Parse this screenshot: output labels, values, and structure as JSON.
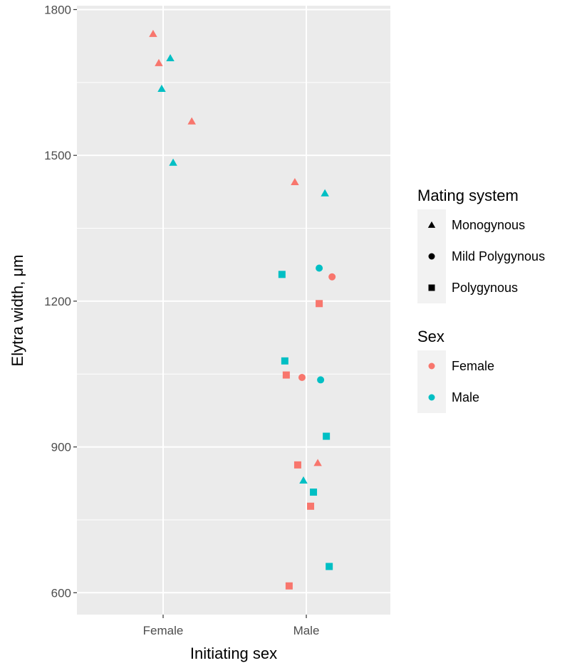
{
  "chart_data": {
    "type": "scatter",
    "title": "",
    "xlabel": "Initiating sex",
    "ylabel": "Elytra width, μm",
    "categories": [
      "Female",
      "Male"
    ],
    "ylim": [
      555,
      1808
    ],
    "yticks": [
      600,
      900,
      1200,
      1500,
      1800
    ],
    "grid": true,
    "legend_position": "right",
    "colors": {
      "Female": "#F8766D",
      "Male": "#00BFC4"
    },
    "legends": [
      {
        "title": "Mating system",
        "items": [
          {
            "label": "Monogynous",
            "shape": "triangle"
          },
          {
            "label": "Mild Polygynous",
            "shape": "circle"
          },
          {
            "label": "Polygynous",
            "shape": "square"
          }
        ]
      },
      {
        "title": "Sex",
        "items": [
          {
            "label": "Female",
            "color": "#F8766D"
          },
          {
            "label": "Male",
            "color": "#00BFC4"
          }
        ]
      }
    ],
    "points": [
      {
        "initiating_sex": "Female",
        "jitter": -0.07,
        "y": 1750,
        "sex": "Female",
        "mating_system": "Monogynous"
      },
      {
        "initiating_sex": "Female",
        "jitter": -0.03,
        "y": 1690,
        "sex": "Female",
        "mating_system": "Monogynous"
      },
      {
        "initiating_sex": "Female",
        "jitter": 0.05,
        "y": 1700,
        "sex": "Male",
        "mating_system": "Monogynous"
      },
      {
        "initiating_sex": "Female",
        "jitter": -0.01,
        "y": 1637,
        "sex": "Male",
        "mating_system": "Monogynous"
      },
      {
        "initiating_sex": "Female",
        "jitter": 0.2,
        "y": 1570,
        "sex": "Female",
        "mating_system": "Monogynous"
      },
      {
        "initiating_sex": "Female",
        "jitter": 0.07,
        "y": 1485,
        "sex": "Male",
        "mating_system": "Monogynous"
      },
      {
        "initiating_sex": "Male",
        "jitter": -0.08,
        "y": 1445,
        "sex": "Female",
        "mating_system": "Monogynous"
      },
      {
        "initiating_sex": "Male",
        "jitter": 0.13,
        "y": 1422,
        "sex": "Male",
        "mating_system": "Monogynous"
      },
      {
        "initiating_sex": "Male",
        "jitter": -0.17,
        "y": 1255,
        "sex": "Male",
        "mating_system": "Polygynous"
      },
      {
        "initiating_sex": "Male",
        "jitter": 0.09,
        "y": 1268,
        "sex": "Male",
        "mating_system": "Mild Polygynous"
      },
      {
        "initiating_sex": "Male",
        "jitter": 0.18,
        "y": 1250,
        "sex": "Female",
        "mating_system": "Mild Polygynous"
      },
      {
        "initiating_sex": "Male",
        "jitter": 0.09,
        "y": 1195,
        "sex": "Female",
        "mating_system": "Polygynous"
      },
      {
        "initiating_sex": "Male",
        "jitter": -0.15,
        "y": 1077,
        "sex": "Male",
        "mating_system": "Polygynous"
      },
      {
        "initiating_sex": "Male",
        "jitter": -0.14,
        "y": 1048,
        "sex": "Female",
        "mating_system": "Polygynous"
      },
      {
        "initiating_sex": "Male",
        "jitter": -0.03,
        "y": 1043,
        "sex": "Female",
        "mating_system": "Mild Polygynous"
      },
      {
        "initiating_sex": "Male",
        "jitter": 0.1,
        "y": 1038,
        "sex": "Male",
        "mating_system": "Mild Polygynous"
      },
      {
        "initiating_sex": "Male",
        "jitter": 0.14,
        "y": 922,
        "sex": "Male",
        "mating_system": "Polygynous"
      },
      {
        "initiating_sex": "Male",
        "jitter": -0.06,
        "y": 863,
        "sex": "Female",
        "mating_system": "Polygynous"
      },
      {
        "initiating_sex": "Male",
        "jitter": 0.08,
        "y": 867,
        "sex": "Female",
        "mating_system": "Monogynous"
      },
      {
        "initiating_sex": "Male",
        "jitter": -0.02,
        "y": 831,
        "sex": "Male",
        "mating_system": "Monogynous"
      },
      {
        "initiating_sex": "Male",
        "jitter": 0.05,
        "y": 807,
        "sex": "Male",
        "mating_system": "Polygynous"
      },
      {
        "initiating_sex": "Male",
        "jitter": 0.03,
        "y": 778,
        "sex": "Female",
        "mating_system": "Polygynous"
      },
      {
        "initiating_sex": "Male",
        "jitter": 0.16,
        "y": 654,
        "sex": "Male",
        "mating_system": "Polygynous"
      },
      {
        "initiating_sex": "Male",
        "jitter": -0.12,
        "y": 614,
        "sex": "Female",
        "mating_system": "Polygynous"
      }
    ]
  }
}
